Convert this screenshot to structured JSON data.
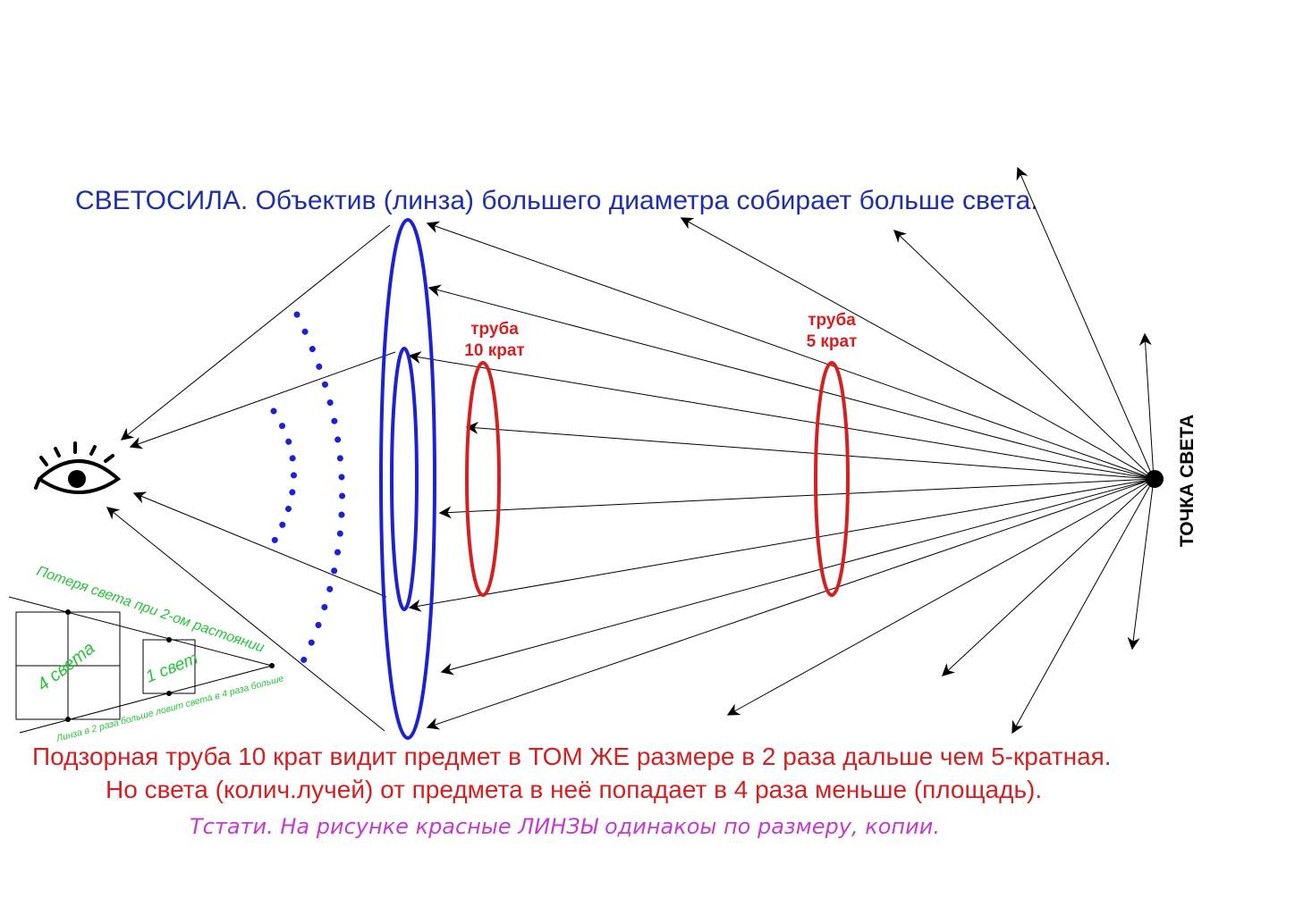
{
  "title": "СВЕТОСИЛА. Объектив (линза) большего диаметра собирает больше света.",
  "tube10": {
    "line1": "труба",
    "line2": "10 крат"
  },
  "tube5": {
    "line1": "труба",
    "line2": "5 крат"
  },
  "light_point_label": "ТОЧКА СВЕТА",
  "inset": {
    "loss_label": "Потеря света при 2-ом растоянии",
    "four_light": "4 света",
    "one_light": "1 свет",
    "bottom_label": "Линза в 2 раза больше ловит света в 4 раза больше"
  },
  "caption": {
    "line1": "Подзорная труба 10 крат видит предмет в ТОМ ЖЕ размере в 2 раза дальше чем 5-кратная.",
    "line2": "Но света (колич.лучей) от предмета в неё попадает в 4 раза меньше (площадь)."
  },
  "note": "Тстати. На рисунке красные ЛИНЗЫ одинакоы по размеру, копии.",
  "colors": {
    "blue": "#1f2fa8",
    "lens_blue": "#1c22d4",
    "red": "#d42020",
    "green": "#27c43a",
    "magenta": "#c23ccf"
  }
}
